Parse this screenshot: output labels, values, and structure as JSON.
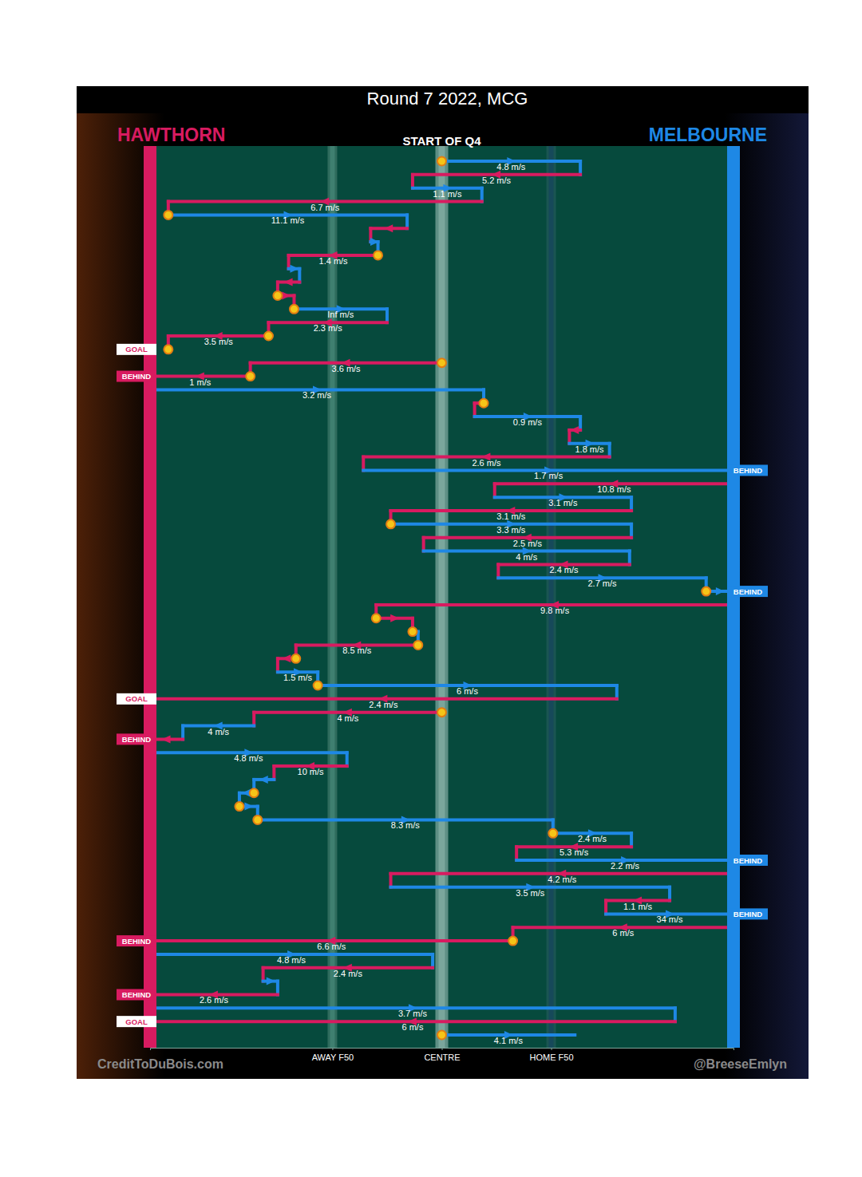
{
  "chart_data": {
    "type": "possession_chain",
    "title": "Round 7 2022, MCG",
    "subtitle": "START OF Q4",
    "annotations": [
      "CreditToDuBois.com",
      "@BreeseEmlyn"
    ],
    "teams": [
      {
        "name": "HAWTHORN",
        "color": "#d81b60"
      },
      {
        "name": "MELBOURNE",
        "color": "#1e88e5"
      }
    ],
    "xlim": [
      0,
      160
    ],
    "xticks": [
      {
        "value": 50,
        "label": "AWAY F50"
      },
      {
        "value": 80,
        "label": "CENTRE"
      },
      {
        "value": 110,
        "label": "HOME F50"
      }
    ],
    "grid": true,
    "tick_labels": "x",
    "data_labels": true,
    "segments": [
      {
        "team": "MELBOURNE",
        "from": 80,
        "to": 118,
        "label": "4.8 m/s",
        "stoppage": true
      },
      {
        "team": "HAWTHORN",
        "from": 118,
        "to": 72,
        "label": "5.2 m/s",
        "stoppage": false
      },
      {
        "team": "MELBOURNE",
        "from": 72,
        "to": 91,
        "label": "1.1 m/s",
        "stoppage": false
      },
      {
        "team": "HAWTHORN",
        "from": 91,
        "to": 5,
        "label": "6.7 m/s",
        "stoppage": false
      },
      {
        "team": "MELBOURNE",
        "from": 5,
        "to": 70.5,
        "label": "11.1 m/s",
        "stoppage": true
      },
      {
        "team": "HAWTHORN",
        "from": 70.5,
        "to": 60.5,
        "stoppage": false
      },
      {
        "team": "MELBOURNE",
        "from": 60.5,
        "to": 62.5,
        "stoppage": false
      },
      {
        "team": "HAWTHORN",
        "from": 62.5,
        "to": 38,
        "label": "1.4 m/s",
        "stoppage": true
      },
      {
        "team": "MELBOURNE",
        "from": 38,
        "to": 41,
        "stoppage": false
      },
      {
        "team": "HAWTHORN",
        "from": 41,
        "to": 35,
        "stoppage": false
      },
      {
        "team": "HAWTHORN",
        "from": 35,
        "to": 39.5,
        "stoppage": true
      },
      {
        "team": "MELBOURNE",
        "from": 39.5,
        "to": 65,
        "label": "Inf m/s",
        "stoppage": true
      },
      {
        "team": "HAWTHORN",
        "from": 65,
        "to": 32.5,
        "label": "2.3 m/s",
        "stoppage": false
      },
      {
        "team": "HAWTHORN",
        "from": 32.5,
        "to": 5,
        "label": "3.5 m/s",
        "stoppage": true
      },
      {
        "team": "HAWTHORN",
        "from": 5,
        "to": 5,
        "stoppage": true,
        "result": "GOAL",
        "marker": "outline"
      },
      {
        "team": "HAWTHORN",
        "from": 80,
        "to": 27.5,
        "label": "3.6 m/s",
        "stoppage": true
      },
      {
        "team": "HAWTHORN",
        "from": 27.5,
        "to": 0,
        "label": "1 m/s",
        "stoppage": true,
        "result": "BEHIND",
        "marker": "filled"
      },
      {
        "team": "MELBOURNE",
        "from": 0,
        "to": 91.5,
        "label": "3.2 m/s",
        "stoppage": false
      },
      {
        "team": "HAWTHORN",
        "from": 91.5,
        "to": 89,
        "stoppage": true
      },
      {
        "team": "MELBOURNE",
        "from": 89,
        "to": 118,
        "label": "0.9 m/s",
        "stoppage": false
      },
      {
        "team": "HAWTHORN",
        "from": 118,
        "to": 115,
        "stoppage": false
      },
      {
        "team": "MELBOURNE",
        "from": 115,
        "to": 126,
        "label": "1.8 m/s",
        "stoppage": false
      },
      {
        "team": "HAWTHORN",
        "from": 126,
        "to": 58.5,
        "label": "2.6 m/s",
        "stoppage": false
      },
      {
        "team": "MELBOURNE",
        "from": 58.5,
        "to": 160,
        "label": "1.7 m/s",
        "stoppage": false,
        "result": "BEHIND",
        "marker": "filled"
      },
      {
        "team": "HAWTHORN",
        "from": 160,
        "to": 94.5,
        "label": "10.8 m/s",
        "stoppage": false
      },
      {
        "team": "MELBOURNE",
        "from": 94.5,
        "to": 132,
        "label": "3.1 m/s",
        "stoppage": false
      },
      {
        "team": "HAWTHORN",
        "from": 132,
        "to": 66,
        "label": "3.1 m/s",
        "stoppage": false
      },
      {
        "team": "MELBOURNE",
        "from": 66,
        "to": 132,
        "label": "3.3 m/s",
        "stoppage": true
      },
      {
        "team": "HAWTHORN",
        "from": 132,
        "to": 75,
        "label": "2.5 m/s",
        "stoppage": false
      },
      {
        "team": "MELBOURNE",
        "from": 75,
        "to": 131.5,
        "label": "4 m/s",
        "stoppage": false
      },
      {
        "team": "HAWTHORN",
        "from": 131.5,
        "to": 95.5,
        "label": "2.4 m/s",
        "stoppage": false
      },
      {
        "team": "MELBOURNE",
        "from": 95.5,
        "to": 152.5,
        "label": "2.7 m/s",
        "stoppage": false
      },
      {
        "team": "MELBOURNE",
        "from": 152.5,
        "to": 160,
        "stoppage": true,
        "result": "BEHIND",
        "marker": "filled"
      },
      {
        "team": "HAWTHORN",
        "from": 160,
        "to": 62,
        "label": "9.8 m/s",
        "stoppage": false
      },
      {
        "team": "HAWTHORN",
        "from": 62,
        "to": 72,
        "stoppage": true
      },
      {
        "team": "MELBOURNE",
        "from": 72,
        "to": 73.5,
        "stoppage": true
      },
      {
        "team": "HAWTHORN",
        "from": 73.5,
        "to": 40,
        "label": "8.5 m/s",
        "stoppage": true
      },
      {
        "team": "HAWTHORN",
        "from": 40,
        "to": 35,
        "stoppage": true
      },
      {
        "team": "MELBOURNE",
        "from": 35,
        "to": 46,
        "label": "1.5 m/s",
        "stoppage": false
      },
      {
        "team": "MELBOURNE",
        "from": 46,
        "to": 128,
        "label": "6 m/s",
        "stoppage": true
      },
      {
        "team": "HAWTHORN",
        "from": 128,
        "to": 0,
        "label": "2.4 m/s",
        "stoppage": false,
        "result": "GOAL",
        "marker": "outline"
      },
      {
        "team": "HAWTHORN",
        "from": 80,
        "to": 28.5,
        "label": "4 m/s",
        "stoppage": true
      },
      {
        "team": "MELBOURNE",
        "from": 28.5,
        "to": 9,
        "label": "4 m/s",
        "stoppage": false
      },
      {
        "team": "HAWTHORN",
        "from": 9,
        "to": 0,
        "stoppage": false,
        "result": "BEHIND",
        "marker": "filled"
      },
      {
        "team": "MELBOURNE",
        "from": 0,
        "to": 54,
        "label": "4.8 m/s",
        "stoppage": false
      },
      {
        "team": "HAWTHORN",
        "from": 54,
        "to": 34,
        "label": "10 m/s",
        "stoppage": false
      },
      {
        "team": "MELBOURNE",
        "from": 34,
        "to": 28.5,
        "stoppage": false
      },
      {
        "team": "MELBOURNE",
        "from": 28.5,
        "to": 24.5,
        "stoppage": true
      },
      {
        "team": "MELBOURNE",
        "from": 24.5,
        "to": 29.5,
        "stoppage": true
      },
      {
        "team": "MELBOURNE",
        "from": 29.5,
        "to": 110.5,
        "label": "8.3 m/s",
        "stoppage": true
      },
      {
        "team": "MELBOURNE",
        "from": 110.5,
        "to": 132,
        "label": "2.4 m/s",
        "stoppage": true
      },
      {
        "team": "HAWTHORN",
        "from": 132,
        "to": 100.5,
        "label": "5.3 m/s",
        "stoppage": false
      },
      {
        "team": "MELBOURNE",
        "from": 100.5,
        "to": 160,
        "label": "2.2 m/s",
        "stoppage": false,
        "result": "BEHIND",
        "marker": "filled"
      },
      {
        "team": "HAWTHORN",
        "from": 160,
        "to": 66,
        "label": "4.2 m/s",
        "stoppage": false
      },
      {
        "team": "MELBOURNE",
        "from": 66,
        "to": 142.5,
        "label": "3.5 m/s",
        "stoppage": false
      },
      {
        "team": "HAWTHORN",
        "from": 142.5,
        "to": 125,
        "label": "1.1 m/s",
        "stoppage": false
      },
      {
        "team": "MELBOURNE",
        "from": 125,
        "to": 160,
        "label": "34 m/s",
        "stoppage": false,
        "result": "BEHIND",
        "marker": "filled"
      },
      {
        "team": "HAWTHORN",
        "from": 160,
        "to": 99.5,
        "label": "6 m/s",
        "stoppage": false
      },
      {
        "team": "HAWTHORN",
        "from": 99.5,
        "to": 0,
        "label": "6.6 m/s",
        "stoppage": true,
        "result": "BEHIND",
        "marker": "filled"
      },
      {
        "team": "MELBOURNE",
        "from": 0,
        "to": 77.5,
        "label": "4.8 m/s",
        "stoppage": false
      },
      {
        "team": "HAWTHORN",
        "from": 77.5,
        "to": 31,
        "label": "2.4 m/s",
        "stoppage": false
      },
      {
        "team": "MELBOURNE",
        "from": 31,
        "to": 35,
        "stoppage": false
      },
      {
        "team": "HAWTHORN",
        "from": 35,
        "to": 0,
        "label": "2.6 m/s",
        "stoppage": false,
        "result": "BEHIND",
        "marker": "filled"
      },
      {
        "team": "MELBOURNE",
        "from": 0,
        "to": 144,
        "label": "3.7 m/s",
        "stoppage": false
      },
      {
        "team": "HAWTHORN",
        "from": 144,
        "to": 0,
        "label": "6 m/s",
        "stoppage": false,
        "result": "GOAL",
        "marker": "outline"
      },
      {
        "team": "MELBOURNE",
        "from": 80,
        "to": 116.5,
        "label": "4.1 m/s",
        "stoppage": true
      }
    ]
  }
}
